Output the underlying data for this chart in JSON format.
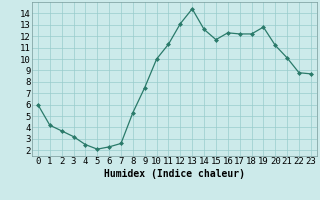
{
  "x": [
    0,
    1,
    2,
    3,
    4,
    5,
    6,
    7,
    8,
    9,
    10,
    11,
    12,
    13,
    14,
    15,
    16,
    17,
    18,
    19,
    20,
    21,
    22,
    23
  ],
  "y": [
    6.0,
    4.2,
    3.7,
    3.2,
    2.5,
    2.1,
    2.3,
    2.6,
    5.3,
    7.5,
    10.0,
    11.3,
    13.1,
    14.4,
    12.6,
    11.7,
    12.3,
    12.2,
    12.2,
    12.8,
    11.2,
    10.1,
    8.8,
    8.7
  ],
  "line_color": "#2a7a6a",
  "marker": "D",
  "marker_size": 2.0,
  "bg_color": "#cceaea",
  "grid_color": "#99cccc",
  "xlabel": "Humidex (Indice chaleur)",
  "xlim": [
    -0.5,
    23.5
  ],
  "ylim": [
    1.5,
    15.0
  ],
  "yticks": [
    2,
    3,
    4,
    5,
    6,
    7,
    8,
    9,
    10,
    11,
    12,
    13,
    14
  ],
  "xticks": [
    0,
    1,
    2,
    3,
    4,
    5,
    6,
    7,
    8,
    9,
    10,
    11,
    12,
    13,
    14,
    15,
    16,
    17,
    18,
    19,
    20,
    21,
    22,
    23
  ],
  "xlabel_fontsize": 7,
  "tick_fontsize": 6.5
}
